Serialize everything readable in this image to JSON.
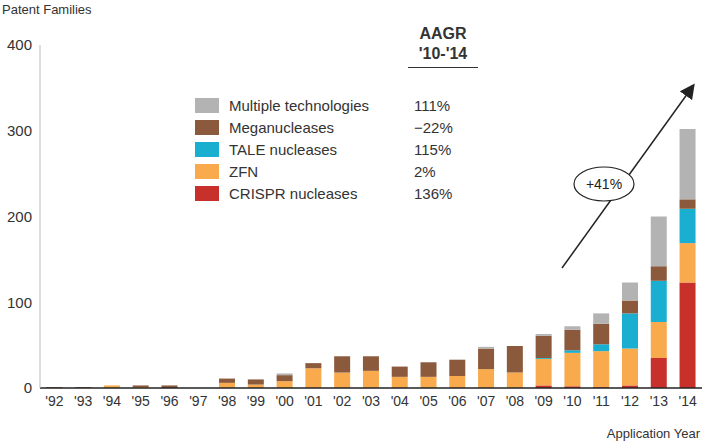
{
  "chart_data": {
    "type": "bar",
    "stacked": true,
    "y_label": "Patent Families",
    "x_label": "Application Year",
    "legend_header": [
      "AAGR",
      "'10-'14"
    ],
    "annotations": [
      {
        "text": "+41%"
      }
    ],
    "categories": [
      "'92",
      "'93",
      "'94",
      "'95",
      "'96",
      "'97",
      "'98",
      "'99",
      "'00",
      "'01",
      "'02",
      "'03",
      "'04",
      "'05",
      "'06",
      "'07",
      "'08",
      "'09",
      "'10",
      "'11",
      "'12",
      "'13",
      "'14"
    ],
    "ylim": [
      0,
      400
    ],
    "yticks": [
      0,
      100,
      200,
      300,
      400
    ],
    "grid": false,
    "series": [
      {
        "name": "CRISPR nucleases",
        "color": "#c8302c",
        "aagr": "136%",
        "values": [
          0,
          0,
          0,
          0,
          0,
          0,
          0,
          0,
          0,
          0,
          0,
          0,
          0,
          0,
          0,
          0,
          0,
          3,
          2,
          1,
          3,
          35,
          123
        ]
      },
      {
        "name": "ZFN",
        "color": "#f9aa4c",
        "aagr": "2%",
        "values": [
          0,
          0,
          3,
          1,
          0,
          0,
          6,
          4,
          8,
          23,
          18,
          20,
          13,
          13,
          14,
          22,
          18,
          31,
          39,
          42,
          43,
          42,
          46
        ]
      },
      {
        "name": "TALE nucleases",
        "color": "#1aaed0",
        "aagr": "115%",
        "values": [
          0,
          0,
          0,
          0,
          0,
          0,
          0,
          0,
          0,
          0,
          0,
          0,
          0,
          0,
          0,
          0,
          0,
          1,
          3,
          8,
          41,
          48,
          40
        ]
      },
      {
        "name": "Meganucleases",
        "color": "#8b5a3c",
        "aagr": "−22%",
        "values": [
          1,
          1,
          0,
          2,
          3,
          0,
          5,
          6,
          7,
          6,
          19,
          17,
          12,
          17,
          19,
          24,
          31,
          26,
          24,
          24,
          15,
          17,
          11
        ]
      },
      {
        "name": "Multiple technologies",
        "color": "#b3b3b3",
        "aagr": "111%",
        "values": [
          0,
          0,
          0,
          0,
          0,
          0,
          0,
          0,
          2,
          0,
          0,
          0,
          0,
          0,
          0,
          2,
          0,
          2,
          4,
          12,
          21,
          58,
          82
        ]
      }
    ]
  }
}
